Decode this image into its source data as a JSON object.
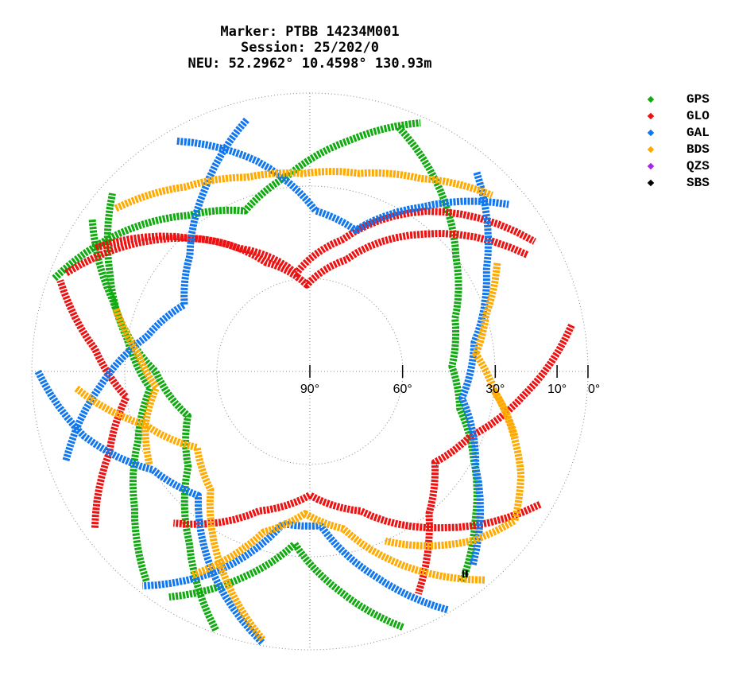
{
  "title": {
    "marker": "Marker: PTBB 14234M001",
    "session": "Session: 25/202/0",
    "position": "NEU: 52.2962° 10.4598° 130.93m"
  },
  "legend": [
    {
      "name": "GPS",
      "color": "#11aa11"
    },
    {
      "name": "GLO",
      "color": "#ee1111"
    },
    {
      "name": "GAL",
      "color": "#1177ee"
    },
    {
      "name": "BDS",
      "color": "#ffaa00"
    },
    {
      "name": "QZS",
      "color": "#aa22ee"
    },
    {
      "name": "SBS",
      "color": "#000000"
    }
  ],
  "chart_data": {
    "type": "scatter",
    "projection": "polar skyplot (azimuth clockwise from north, radius = 90° minus elevation)",
    "title": "Marker: PTBB 14234M001 / Session: 25/202/0 / NEU: 52.2962° 10.4598° 130.93m",
    "elevation_ticks": [
      "90°",
      "60°",
      "30°",
      "10°",
      "0°"
    ],
    "elevation_tick_values": [
      90,
      60,
      30,
      10,
      0
    ],
    "elevation_range": [
      0,
      90
    ],
    "grid": "dotted circles at 60°, 30° and 0° elevation, dotted N-S / E-W lines",
    "legend_position": "top-right",
    "series": [
      {
        "name": "GPS",
        "color": "#11aa11",
        "tracks": [
          {
            "az": [
              20,
              36,
              52,
              70,
              88,
              104,
              118,
              132,
              144
            ],
            "el": [
              6,
              18,
              30,
              40,
              44,
              40,
              30,
              18,
              6
            ]
          },
          {
            "az": [
              160,
              172,
              185,
              198,
              212
            ],
            "el": [
              2,
              18,
              34,
              20,
              4
            ]
          },
          {
            "az": [
              218,
              232,
              248,
              264,
              280,
              296,
              312
            ],
            "el": [
              4,
              18,
              30,
              38,
              30,
              18,
              4
            ]
          },
          {
            "az": [
              290,
              306,
              322,
              338,
              354,
              10,
              24
            ],
            "el": [
              2,
              14,
              26,
              34,
              26,
              14,
              2
            ]
          },
          {
            "az": [
              200,
              215,
              232,
              250,
              270,
              290,
              305
            ],
            "el": [
              1,
              22,
              40,
              48,
              40,
              22,
              4
            ]
          }
        ]
      },
      {
        "name": "GLO",
        "color": "#ee1111",
        "tracks": [
          {
            "az": [
              300,
              318,
              338,
              358,
              18,
              40,
              62
            ],
            "el": [
              10,
              32,
              52,
              62,
              52,
              32,
              10
            ]
          },
          {
            "az": [
              292,
              310,
              330,
              352,
              14,
              36,
              60
            ],
            "el": [
              5,
              24,
              44,
              58,
              46,
              26,
              6
            ]
          },
          {
            "az": [
              120,
              140,
              160,
              180,
              200,
              222
            ],
            "el": [
              4,
              24,
              42,
              50,
              42,
              24
            ]
          },
          {
            "az": [
              80,
              96,
              112,
              126,
              140,
              154
            ],
            "el": [
              4,
              20,
              34,
              40,
              30,
              10
            ]
          },
          {
            "az": [
              234,
              248,
              262,
              276,
              290
            ],
            "el": [
              4,
              20,
              30,
              20,
              4
            ]
          }
        ]
      },
      {
        "name": "GAL",
        "color": "#1177ee",
        "tracks": [
          {
            "az": [
              150,
              162,
              176,
              190,
              204,
              218
            ],
            "el": [
              1,
              20,
              40,
              40,
              20,
              2
            ]
          },
          {
            "az": [
              250,
              266,
              282,
              298,
              314,
              330,
              346
            ],
            "el": [
              6,
              22,
              36,
              44,
              36,
              22,
              6
            ]
          },
          {
            "az": [
              40,
              60,
              80,
              100,
              120,
              140
            ],
            "el": [
              6,
              24,
              36,
              40,
              28,
              8
            ]
          },
          {
            "az": [
              330,
              346,
              2,
              18,
              34,
              50
            ],
            "el": [
              4,
              20,
              38,
              42,
              26,
              6
            ]
          },
          {
            "az": [
              190,
              206,
              222,
              238,
              254,
              270
            ],
            "el": [
              1,
              18,
              36,
              30,
              14,
              2
            ]
          }
        ]
      },
      {
        "name": "BDS",
        "color": "#ffaa00",
        "tracks": [
          {
            "az": [
              310,
              326,
              342,
              358,
              14,
              30,
              46
            ],
            "el": [
              8,
              18,
              24,
              26,
              24,
              18,
              8
            ]
          },
          {
            "az": [
              96,
              106,
              116,
              126,
              136,
              146,
              156
            ],
            "el": [
              30,
              22,
              14,
              8,
              14,
              22,
              30
            ]
          },
          {
            "az": [
              140,
              154,
              168,
              182,
              196,
              210
            ],
            "el": [
              2,
              20,
              38,
              44,
              36,
              14
            ]
          },
          {
            "az": [
              190,
              204,
              220,
              236,
              252,
              266
            ],
            "el": [
              2,
              20,
              40,
              46,
              34,
              14
            ]
          },
          {
            "az": [
              240,
              252,
              264,
              276,
              288
            ],
            "el": [
              30,
              34,
              40,
              34,
              24
            ]
          },
          {
            "az": [
              60,
              72,
              84,
              96,
              108
            ],
            "el": [
              20,
              30,
              36,
              30,
              20
            ]
          }
        ]
      },
      {
        "name": "QZS",
        "color": "#aa22ee",
        "tracks": []
      },
      {
        "name": "SBS",
        "color": "#000000",
        "tracks": [
          {
            "az": [
              142,
              142.5,
              143
            ],
            "el": [
              7,
              7.5,
              8
            ]
          }
        ]
      }
    ]
  }
}
